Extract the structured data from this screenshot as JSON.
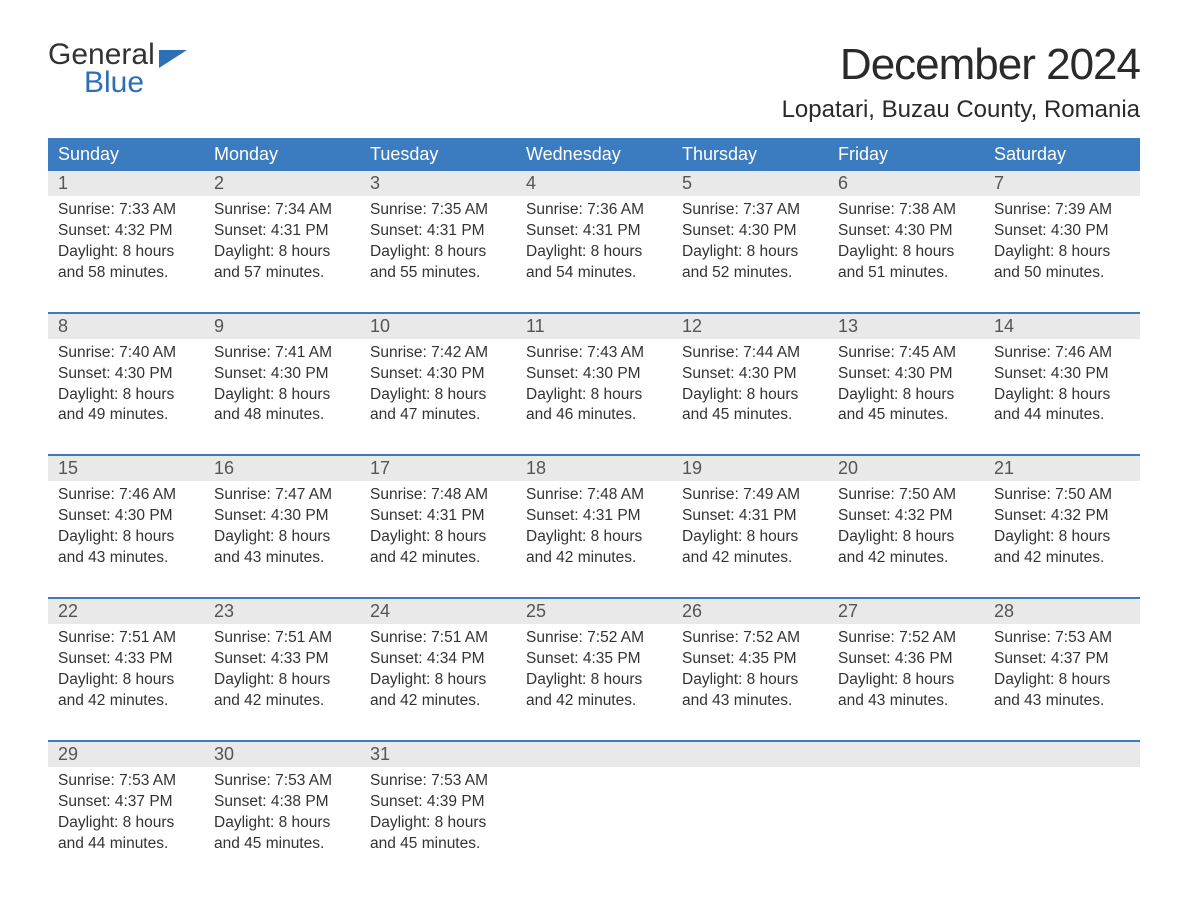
{
  "brand": {
    "general": "General",
    "blue": "Blue"
  },
  "title": "December 2024",
  "location": "Lopatari, Buzau County, Romania",
  "colors": {
    "header_bg": "#3b7bbf",
    "row_divider": "#3b7bbf",
    "daynum_bg": "#e9e9e9",
    "text": "#333333",
    "brand_blue": "#2d6fb5",
    "background": "#ffffff"
  },
  "typography": {
    "title_fontsize": 44,
    "location_fontsize": 24,
    "weekday_fontsize": 18,
    "daynum_fontsize": 18,
    "body_fontsize": 15.5
  },
  "weekdays": [
    "Sunday",
    "Monday",
    "Tuesday",
    "Wednesday",
    "Thursday",
    "Friday",
    "Saturday"
  ],
  "labels": {
    "sunrise": "Sunrise:",
    "sunset": "Sunset:",
    "daylight": "Daylight:"
  },
  "weeks": [
    [
      {
        "day": "1",
        "sunrise": "7:33 AM",
        "sunset": "4:32 PM",
        "daylight1": "8 hours",
        "daylight2": "and 58 minutes."
      },
      {
        "day": "2",
        "sunrise": "7:34 AM",
        "sunset": "4:31 PM",
        "daylight1": "8 hours",
        "daylight2": "and 57 minutes."
      },
      {
        "day": "3",
        "sunrise": "7:35 AM",
        "sunset": "4:31 PM",
        "daylight1": "8 hours",
        "daylight2": "and 55 minutes."
      },
      {
        "day": "4",
        "sunrise": "7:36 AM",
        "sunset": "4:31 PM",
        "daylight1": "8 hours",
        "daylight2": "and 54 minutes."
      },
      {
        "day": "5",
        "sunrise": "7:37 AM",
        "sunset": "4:30 PM",
        "daylight1": "8 hours",
        "daylight2": "and 52 minutes."
      },
      {
        "day": "6",
        "sunrise": "7:38 AM",
        "sunset": "4:30 PM",
        "daylight1": "8 hours",
        "daylight2": "and 51 minutes."
      },
      {
        "day": "7",
        "sunrise": "7:39 AM",
        "sunset": "4:30 PM",
        "daylight1": "8 hours",
        "daylight2": "and 50 minutes."
      }
    ],
    [
      {
        "day": "8",
        "sunrise": "7:40 AM",
        "sunset": "4:30 PM",
        "daylight1": "8 hours",
        "daylight2": "and 49 minutes."
      },
      {
        "day": "9",
        "sunrise": "7:41 AM",
        "sunset": "4:30 PM",
        "daylight1": "8 hours",
        "daylight2": "and 48 minutes."
      },
      {
        "day": "10",
        "sunrise": "7:42 AM",
        "sunset": "4:30 PM",
        "daylight1": "8 hours",
        "daylight2": "and 47 minutes."
      },
      {
        "day": "11",
        "sunrise": "7:43 AM",
        "sunset": "4:30 PM",
        "daylight1": "8 hours",
        "daylight2": "and 46 minutes."
      },
      {
        "day": "12",
        "sunrise": "7:44 AM",
        "sunset": "4:30 PM",
        "daylight1": "8 hours",
        "daylight2": "and 45 minutes."
      },
      {
        "day": "13",
        "sunrise": "7:45 AM",
        "sunset": "4:30 PM",
        "daylight1": "8 hours",
        "daylight2": "and 45 minutes."
      },
      {
        "day": "14",
        "sunrise": "7:46 AM",
        "sunset": "4:30 PM",
        "daylight1": "8 hours",
        "daylight2": "and 44 minutes."
      }
    ],
    [
      {
        "day": "15",
        "sunrise": "7:46 AM",
        "sunset": "4:30 PM",
        "daylight1": "8 hours",
        "daylight2": "and 43 minutes."
      },
      {
        "day": "16",
        "sunrise": "7:47 AM",
        "sunset": "4:30 PM",
        "daylight1": "8 hours",
        "daylight2": "and 43 minutes."
      },
      {
        "day": "17",
        "sunrise": "7:48 AM",
        "sunset": "4:31 PM",
        "daylight1": "8 hours",
        "daylight2": "and 42 minutes."
      },
      {
        "day": "18",
        "sunrise": "7:48 AM",
        "sunset": "4:31 PM",
        "daylight1": "8 hours",
        "daylight2": "and 42 minutes."
      },
      {
        "day": "19",
        "sunrise": "7:49 AM",
        "sunset": "4:31 PM",
        "daylight1": "8 hours",
        "daylight2": "and 42 minutes."
      },
      {
        "day": "20",
        "sunrise": "7:50 AM",
        "sunset": "4:32 PM",
        "daylight1": "8 hours",
        "daylight2": "and 42 minutes."
      },
      {
        "day": "21",
        "sunrise": "7:50 AM",
        "sunset": "4:32 PM",
        "daylight1": "8 hours",
        "daylight2": "and 42 minutes."
      }
    ],
    [
      {
        "day": "22",
        "sunrise": "7:51 AM",
        "sunset": "4:33 PM",
        "daylight1": "8 hours",
        "daylight2": "and 42 minutes."
      },
      {
        "day": "23",
        "sunrise": "7:51 AM",
        "sunset": "4:33 PM",
        "daylight1": "8 hours",
        "daylight2": "and 42 minutes."
      },
      {
        "day": "24",
        "sunrise": "7:51 AM",
        "sunset": "4:34 PM",
        "daylight1": "8 hours",
        "daylight2": "and 42 minutes."
      },
      {
        "day": "25",
        "sunrise": "7:52 AM",
        "sunset": "4:35 PM",
        "daylight1": "8 hours",
        "daylight2": "and 42 minutes."
      },
      {
        "day": "26",
        "sunrise": "7:52 AM",
        "sunset": "4:35 PM",
        "daylight1": "8 hours",
        "daylight2": "and 43 minutes."
      },
      {
        "day": "27",
        "sunrise": "7:52 AM",
        "sunset": "4:36 PM",
        "daylight1": "8 hours",
        "daylight2": "and 43 minutes."
      },
      {
        "day": "28",
        "sunrise": "7:53 AM",
        "sunset": "4:37 PM",
        "daylight1": "8 hours",
        "daylight2": "and 43 minutes."
      }
    ],
    [
      {
        "day": "29",
        "sunrise": "7:53 AM",
        "sunset": "4:37 PM",
        "daylight1": "8 hours",
        "daylight2": "and 44 minutes."
      },
      {
        "day": "30",
        "sunrise": "7:53 AM",
        "sunset": "4:38 PM",
        "daylight1": "8 hours",
        "daylight2": "and 45 minutes."
      },
      {
        "day": "31",
        "sunrise": "7:53 AM",
        "sunset": "4:39 PM",
        "daylight1": "8 hours",
        "daylight2": "and 45 minutes."
      },
      null,
      null,
      null,
      null
    ]
  ]
}
